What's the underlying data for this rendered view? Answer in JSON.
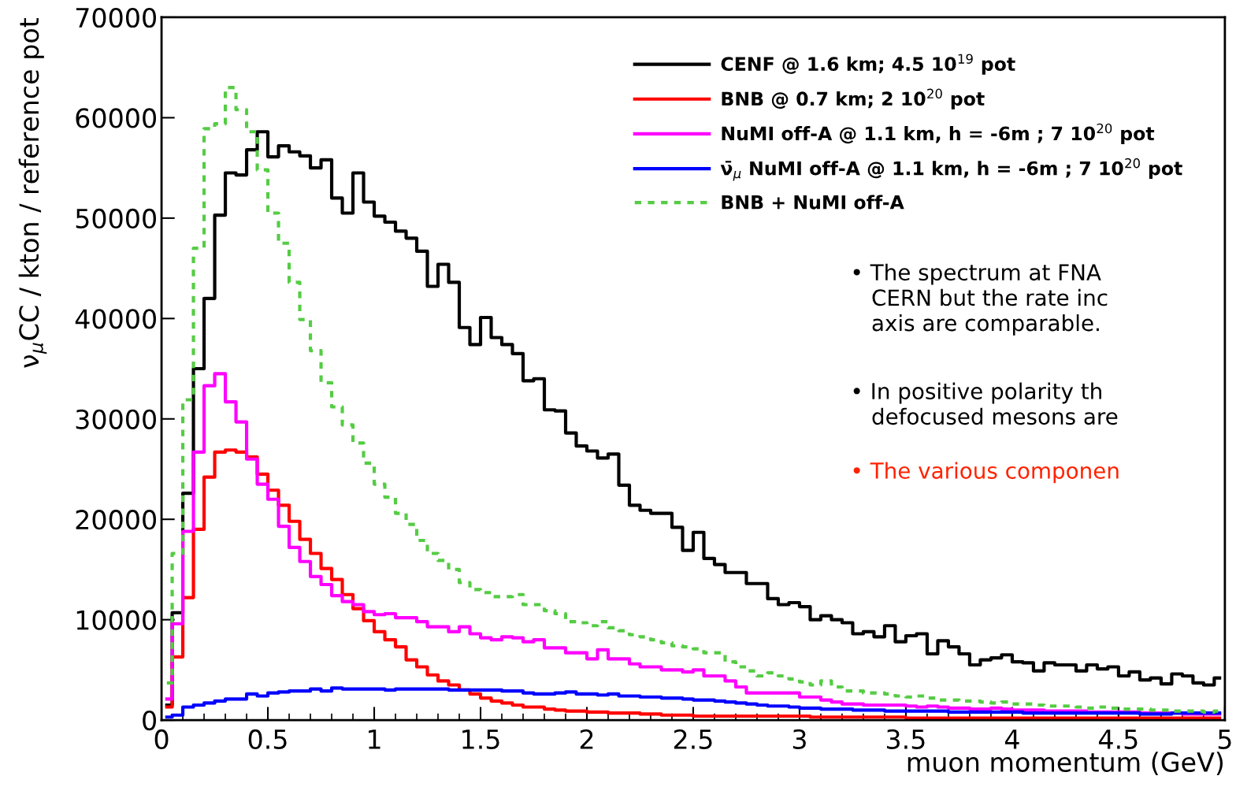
{
  "chart_data": {
    "type": "step",
    "xlabel": "muon momentum (GeV)",
    "ylabel": "ν$_{μ}$CC / kton / reference pot",
    "x": [
      0.025,
      0.075,
      0.125,
      0.175,
      0.225,
      0.275,
      0.325,
      0.375,
      0.425,
      0.475,
      0.525,
      0.575,
      0.625,
      0.675,
      0.725,
      0.775,
      0.825,
      0.875,
      0.925,
      0.975,
      1.025,
      1.075,
      1.125,
      1.175,
      1.225,
      1.275,
      1.325,
      1.375,
      1.425,
      1.475,
      1.525,
      1.575,
      1.625,
      1.675,
      1.725,
      1.775,
      1.825,
      1.875,
      1.925,
      1.975,
      2.025,
      2.075,
      2.125,
      2.175,
      2.225,
      2.275,
      2.325,
      2.375,
      2.425,
      2.475,
      2.525,
      2.575,
      2.625,
      2.675,
      2.725,
      2.775,
      2.825,
      2.875,
      2.925,
      2.975,
      3.025,
      3.075,
      3.125,
      3.175,
      3.225,
      3.275,
      3.325,
      3.375,
      3.425,
      3.475,
      3.525,
      3.575,
      3.625,
      3.675,
      3.725,
      3.775,
      3.825,
      3.875,
      3.925,
      3.975,
      4.025,
      4.075,
      4.125,
      4.175,
      4.225,
      4.275,
      4.325,
      4.375,
      4.425,
      4.475,
      4.525,
      4.575,
      4.625,
      4.675,
      4.725,
      4.775,
      4.825,
      4.875,
      4.925,
      4.975
    ],
    "series": [
      {
        "name": "CENF @ 1.6 km; 4.5 10$^{19}$ pot",
        "color": "#000000",
        "line_style": "solid",
        "values": [
          1500,
          10700,
          22600,
          35000,
          42000,
          50300,
          54500,
          54300,
          56800,
          58600,
          56100,
          57200,
          56600,
          56200,
          55000,
          55800,
          52000,
          50500,
          54500,
          51600,
          50200,
          49600,
          48700,
          48000,
          46700,
          43200,
          45400,
          43600,
          39100,
          37400,
          40100,
          38100,
          37400,
          36500,
          33800,
          34000,
          30900,
          30800,
          28600,
          27300,
          26800,
          26100,
          26500,
          23400,
          21400,
          20900,
          20600,
          20600,
          19200,
          16900,
          18700,
          16100,
          15500,
          14700,
          14700,
          13600,
          13600,
          12100,
          11500,
          11700,
          11300,
          10000,
          10400,
          10000,
          9700,
          8600,
          8800,
          8300,
          9400,
          7800,
          8400,
          8600,
          6600,
          7900,
          7300,
          6600,
          5500,
          6000,
          6200,
          6500,
          5800,
          5700,
          4900,
          5700,
          5500,
          5500,
          4900,
          5500,
          5100,
          5300,
          4400,
          4800,
          4000,
          4200,
          3600,
          4600,
          4400,
          3700,
          3500,
          4200
        ]
      },
      {
        "name": "BNB @ 0.7 km; 2 10$^{20}$ pot",
        "color": "#ff0000",
        "line_style": "solid",
        "values": [
          1300,
          6300,
          12200,
          19000,
          24200,
          26700,
          26900,
          26700,
          26200,
          24500,
          22900,
          21400,
          19800,
          18000,
          16600,
          15100,
          14000,
          12500,
          11100,
          9900,
          8800,
          8000,
          7300,
          6000,
          5300,
          4500,
          3900,
          3500,
          3000,
          2600,
          2200,
          1900,
          1700,
          1500,
          1300,
          1300,
          1100,
          1000,
          900,
          900,
          800,
          800,
          700,
          700,
          700,
          600,
          600,
          500,
          500,
          500,
          400,
          400,
          400,
          400,
          400,
          400,
          400,
          400,
          400,
          400,
          400,
          300,
          300,
          300,
          300,
          300,
          300,
          300,
          300,
          300,
          200,
          200,
          200,
          200,
          200,
          200,
          200,
          200,
          200,
          200,
          200,
          200,
          200,
          200,
          200,
          200,
          200,
          200,
          200,
          200,
          200,
          200,
          200,
          200,
          200,
          200,
          200,
          200,
          200,
          200
        ]
      },
      {
        "name": "NuMI off-A @ 1.1 km, h = -6m ; 7 10$^{20}$ pot",
        "color": "#ff00ff",
        "line_style": "solid",
        "values": [
          2100,
          9600,
          18800,
          26700,
          33300,
          34500,
          31700,
          29700,
          26000,
          23500,
          22000,
          19300,
          17200,
          15800,
          14300,
          13500,
          12400,
          11800,
          11500,
          10800,
          10500,
          10600,
          10200,
          10200,
          9800,
          9300,
          9300,
          8800,
          9300,
          8600,
          8200,
          8000,
          8300,
          8200,
          7800,
          8000,
          7200,
          7200,
          6700,
          6700,
          6100,
          7000,
          6100,
          6100,
          5600,
          5300,
          5300,
          5000,
          5000,
          4800,
          5000,
          4400,
          4400,
          3900,
          3300,
          2700,
          2700,
          2700,
          2700,
          2700,
          2300,
          2300,
          2000,
          1800,
          1600,
          1600,
          1500,
          1500,
          1500,
          1500,
          1400,
          1300,
          1400,
          1300,
          1200,
          1200,
          1100,
          1100,
          1200,
          1100,
          1000,
          1000,
          1000,
          900,
          900,
          900,
          900,
          800,
          800,
          800,
          800,
          800,
          700,
          700,
          700,
          700,
          600,
          600,
          600,
          600
        ]
      },
      {
        "name": "ν̄$_{μ}$ NuMI off-A @ 1.1 km, h = -6m ; 7 10$^{20}$ pot",
        "color": "#0000ff",
        "line_style": "solid",
        "values": [
          300,
          500,
          1300,
          1500,
          1700,
          1900,
          2100,
          2100,
          2600,
          2400,
          2700,
          2800,
          2900,
          2900,
          3100,
          2900,
          3200,
          3100,
          3100,
          3100,
          3100,
          3000,
          3100,
          3100,
          3100,
          3100,
          3100,
          3000,
          3000,
          3000,
          3000,
          3000,
          2900,
          2900,
          2700,
          2600,
          2600,
          2700,
          2800,
          2600,
          2600,
          2500,
          2600,
          2400,
          2400,
          2300,
          2300,
          2200,
          2200,
          2100,
          2000,
          2000,
          1900,
          1800,
          1700,
          1600,
          1500,
          1400,
          1400,
          1300,
          1200,
          1200,
          1100,
          1100,
          1100,
          1000,
          1000,
          1000,
          900,
          900,
          900,
          900,
          900,
          900,
          800,
          800,
          800,
          800,
          800,
          800,
          800,
          700,
          700,
          700,
          700,
          700,
          700,
          700,
          700,
          700,
          700,
          700,
          600,
          600,
          600,
          700,
          700,
          700,
          700,
          700
        ]
      },
      {
        "name": "BNB + NuMI off-A",
        "color": "#55cc44",
        "line_style": "dotted",
        "values": [
          3700,
          16600,
          31900,
          47000,
          58900,
          59400,
          63000,
          60800,
          58600,
          54800,
          50500,
          47500,
          43600,
          39900,
          36800,
          33600,
          31200,
          29400,
          27600,
          25600,
          23500,
          22200,
          20600,
          19500,
          17900,
          16600,
          15900,
          15000,
          13700,
          13000,
          12700,
          12300,
          12300,
          12500,
          11500,
          11500,
          10900,
          10600,
          9800,
          9700,
          9400,
          9800,
          9200,
          8900,
          8500,
          8300,
          8000,
          7700,
          7400,
          7300,
          7100,
          6700,
          6700,
          5800,
          5300,
          4900,
          4400,
          4700,
          4400,
          4100,
          3800,
          3500,
          3900,
          3300,
          2900,
          2900,
          2700,
          2700,
          2600,
          2400,
          2300,
          2400,
          2200,
          2000,
          2000,
          1900,
          1900,
          1800,
          1700,
          1800,
          1600,
          1600,
          1500,
          1400,
          1400,
          1400,
          1300,
          1200,
          1300,
          1200,
          1100,
          1100,
          1100,
          1000,
          1000,
          900,
          900,
          900,
          800,
          900
        ]
      }
    ],
    "xlim": [
      0,
      5
    ],
    "xticks": [
      0,
      0.5,
      1,
      1.5,
      2,
      2.5,
      3,
      3.5,
      4,
      4.5,
      5
    ],
    "ylim": [
      0,
      70000
    ],
    "yticks": [
      0,
      10000,
      20000,
      30000,
      40000,
      50000,
      60000,
      70000
    ],
    "grid": false,
    "legend": "top right",
    "annotations": [
      "• The spectrum at FNA\n   CERN but the rate inc\n   axis are comparable.",
      "• In positive polarity th\n   defocused mesons are",
      "• The various componen"
    ]
  }
}
